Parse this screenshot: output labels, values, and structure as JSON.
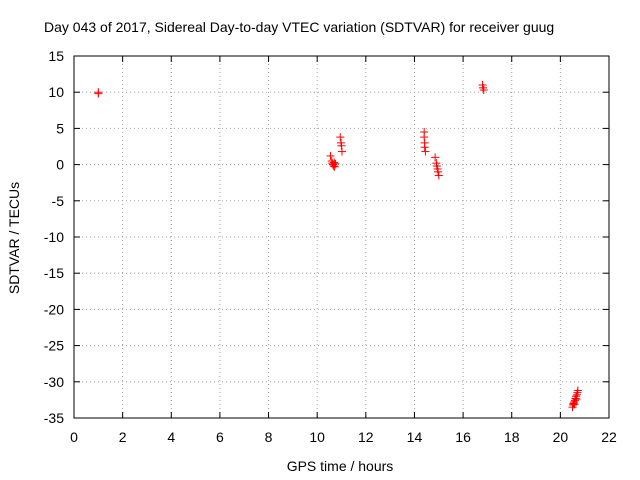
{
  "chart_data": {
    "type": "scatter",
    "title": "Day 043 of 2017, Sidereal Day-to-day VTEC variation (SDTVAR) for receiver guug",
    "xlabel": "GPS time / hours",
    "ylabel": "SDTVAR / TECUs",
    "xlim": [
      0,
      22
    ],
    "ylim": [
      -35,
      15
    ],
    "xticks": [
      "0",
      "2",
      "4",
      "6",
      "8",
      "10",
      "12",
      "14",
      "16",
      "18",
      "20",
      "22"
    ],
    "yticks": [
      "15",
      "10",
      "5",
      "0",
      "-5",
      "-10",
      "-15",
      "-20",
      "-25",
      "-30",
      "-35"
    ],
    "grid": true,
    "marker": "+",
    "color": "#ff0000",
    "series": [
      {
        "name": "SDTVAR",
        "points": [
          [
            1.0,
            10.0
          ],
          [
            1.0,
            9.8
          ],
          [
            10.55,
            1.2
          ],
          [
            10.6,
            0.5
          ],
          [
            10.62,
            0.2
          ],
          [
            10.65,
            0.0
          ],
          [
            10.68,
            -0.2
          ],
          [
            10.7,
            0.3
          ],
          [
            10.72,
            -0.3
          ],
          [
            10.75,
            0.1
          ],
          [
            10.95,
            3.8
          ],
          [
            10.98,
            3.0
          ],
          [
            11.0,
            2.6
          ],
          [
            11.02,
            1.8
          ],
          [
            14.4,
            4.5
          ],
          [
            14.4,
            3.8
          ],
          [
            14.42,
            3.0
          ],
          [
            14.42,
            2.4
          ],
          [
            14.45,
            1.8
          ],
          [
            14.85,
            1.0
          ],
          [
            14.9,
            0.2
          ],
          [
            14.92,
            -0.2
          ],
          [
            14.95,
            -0.6
          ],
          [
            14.97,
            -1.0
          ],
          [
            15.0,
            -1.5
          ],
          [
            16.8,
            11.0
          ],
          [
            16.82,
            10.6
          ],
          [
            16.85,
            10.3
          ],
          [
            20.5,
            -33.5
          ],
          [
            20.52,
            -33.2
          ],
          [
            20.54,
            -33.0
          ],
          [
            20.56,
            -32.8
          ],
          [
            20.58,
            -33.1
          ],
          [
            20.6,
            -32.6
          ],
          [
            20.62,
            -32.3
          ],
          [
            20.64,
            -32.0
          ],
          [
            20.66,
            -32.4
          ],
          [
            20.68,
            -31.8
          ],
          [
            20.7,
            -31.5
          ],
          [
            20.72,
            -31.2
          ]
        ]
      }
    ]
  }
}
